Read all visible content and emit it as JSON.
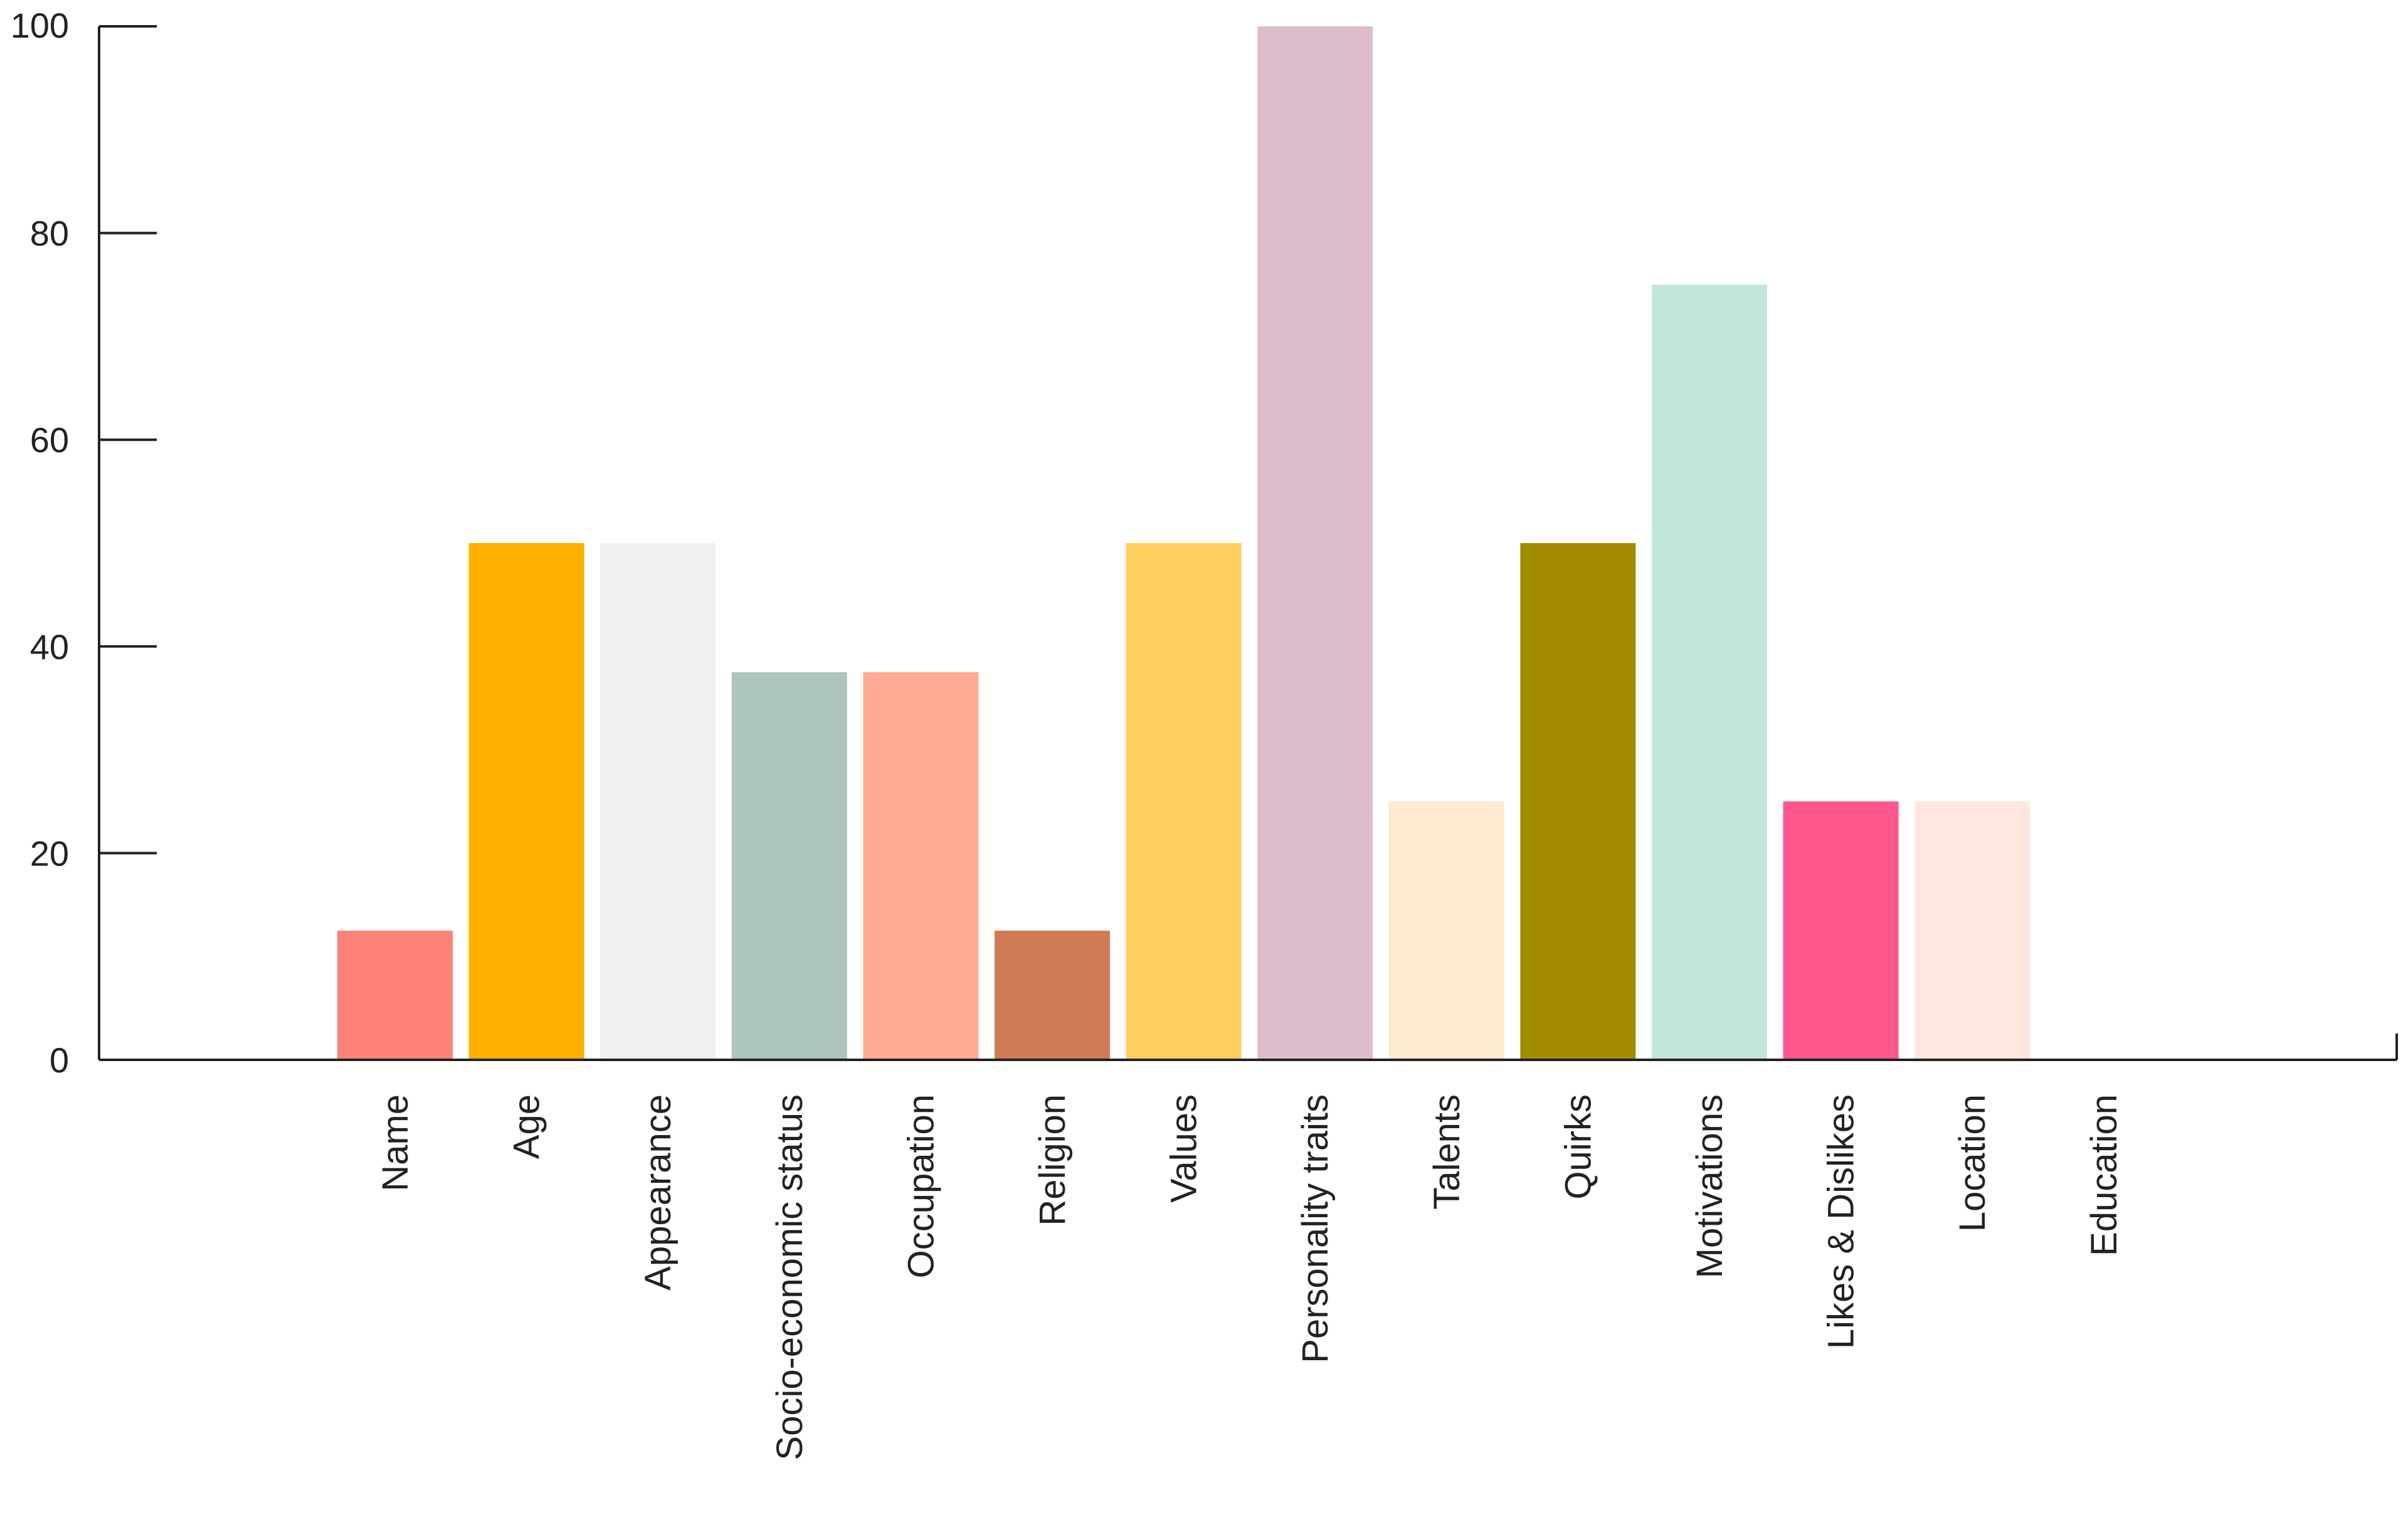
{
  "chart_data": {
    "type": "bar",
    "title": "",
    "xlabel": "",
    "ylabel": "",
    "ylim": [
      0,
      100
    ],
    "yticks": [
      0,
      20,
      40,
      60,
      80,
      100
    ],
    "grid": false,
    "categories": [
      "Name",
      "Age",
      "Appearance",
      "Socio-economic status",
      "Occupation",
      "Religion",
      "Values",
      "Personality traits",
      "Talents",
      "Quirks",
      "Motivations",
      "Likes & Dislikes",
      "Location",
      "Education"
    ],
    "values": [
      12.5,
      50,
      50,
      37.5,
      37.5,
      12.5,
      50,
      100,
      25,
      50,
      75,
      25,
      25,
      0
    ],
    "colors": [
      "#ff8278",
      "#ffb000",
      "#f0f0ee",
      "#aec5bb",
      "#ffab96",
      "#d17a56",
      "#ffcf5e",
      "#ddbccb",
      "#ffe9d0",
      "#a38c00",
      "#c2e6da",
      "#ff568b",
      "#ffe6de",
      "#d9d9d9"
    ],
    "axis_color": "#222222"
  }
}
